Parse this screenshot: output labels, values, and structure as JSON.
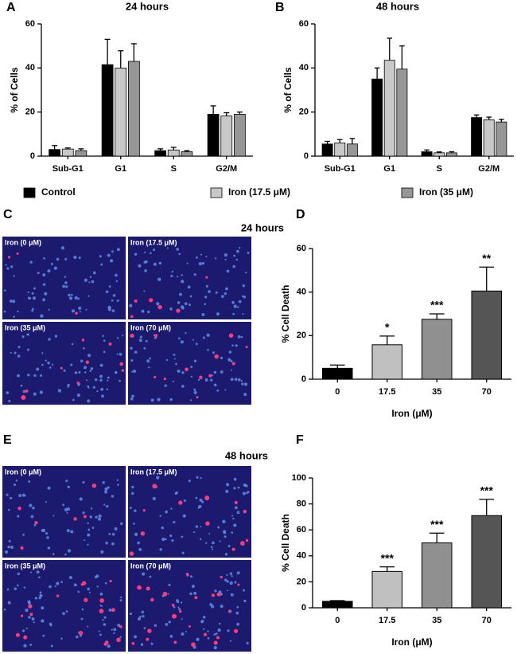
{
  "chart_data": [
    {
      "type": "bar",
      "panel": "A",
      "title": "24 hours",
      "y_label": "% of Cells",
      "categories": [
        "Sub-G1",
        "G1",
        "S",
        "G2/M"
      ],
      "series": [
        {
          "name": "Control",
          "color": "#000000",
          "values": [
            3,
            41.5,
            2.5,
            19
          ],
          "errors": [
            1.8,
            11.5,
            0.8,
            3.8
          ]
        },
        {
          "name": "Iron (17.5 μM)",
          "color": "#c8c8c8",
          "values": [
            3.2,
            40,
            2.8,
            18.2
          ],
          "errors": [
            0.5,
            7.8,
            1.2,
            1.5
          ]
        },
        {
          "name": "Iron (35 μM)",
          "color": "#969696",
          "values": [
            2.5,
            43,
            2,
            19
          ],
          "errors": [
            0.8,
            8,
            0.5,
            1
          ]
        }
      ],
      "ylim": [
        0,
        60
      ],
      "yticks": [
        0,
        20,
        40,
        60
      ]
    },
    {
      "type": "bar",
      "panel": "B",
      "title": "48 hours",
      "y_label": "% of Cells",
      "categories": [
        "Sub-G1",
        "G1",
        "S",
        "G2/M"
      ],
      "series": [
        {
          "color": "#000000",
          "values": [
            5.5,
            35,
            2,
            17.5
          ],
          "errors": [
            1.2,
            5,
            0.8,
            1.2
          ]
        },
        {
          "color": "#c8c8c8",
          "values": [
            6,
            43.5,
            1.5,
            16.5
          ],
          "errors": [
            1.5,
            10,
            0.4,
            1.2
          ]
        },
        {
          "color": "#969696",
          "values": [
            5.5,
            39.5,
            1.5,
            15.5
          ],
          "errors": [
            2.5,
            10.5,
            0.5,
            1.2
          ]
        }
      ],
      "ylim": [
        0,
        60
      ],
      "yticks": [
        0,
        20,
        40,
        60
      ]
    },
    {
      "type": "bar",
      "panel": "D",
      "y_label": "% Cell Death",
      "x_label": "Iron (μM)",
      "categories": [
        "0",
        "17.5",
        "35",
        "70"
      ],
      "values": [
        5,
        15.8,
        27.5,
        40.5
      ],
      "errors": [
        1.5,
        4,
        2.5,
        11
      ],
      "annotations": [
        null,
        "*",
        "***",
        "**"
      ],
      "colors": [
        "#000000",
        "#c0c0c0",
        "#909090",
        "#555555"
      ],
      "ylim": [
        0,
        60
      ],
      "yticks": [
        0,
        20,
        40,
        60
      ]
    },
    {
      "type": "bar",
      "panel": "F",
      "y_label": "% Cell Death",
      "x_label": "Iron (μM)",
      "categories": [
        "0",
        "17.5",
        "35",
        "70"
      ],
      "values": [
        5,
        28,
        50,
        71
      ],
      "errors": [
        0.5,
        3.5,
        7.5,
        12.5
      ],
      "annotations": [
        null,
        "***",
        "***",
        "***"
      ],
      "colors": [
        "#000000",
        "#c0c0c0",
        "#909090",
        "#555555"
      ],
      "ylim": [
        0,
        100
      ],
      "yticks": [
        0,
        20,
        40,
        60,
        80,
        100
      ]
    }
  ],
  "images": [
    {
      "panel": "C",
      "title": "24 hours",
      "labels": [
        "Iron (0 μM)",
        "Iron (17.5 μM)",
        "Iron (35 μM)",
        "Iron (70 μM)"
      ]
    },
    {
      "panel": "E",
      "title": "48 hours",
      "labels": [
        "Iron (0 μM)",
        "Iron (17.5 μM)",
        "Iron (35 μM)",
        "Iron (70 μM)"
      ]
    }
  ]
}
